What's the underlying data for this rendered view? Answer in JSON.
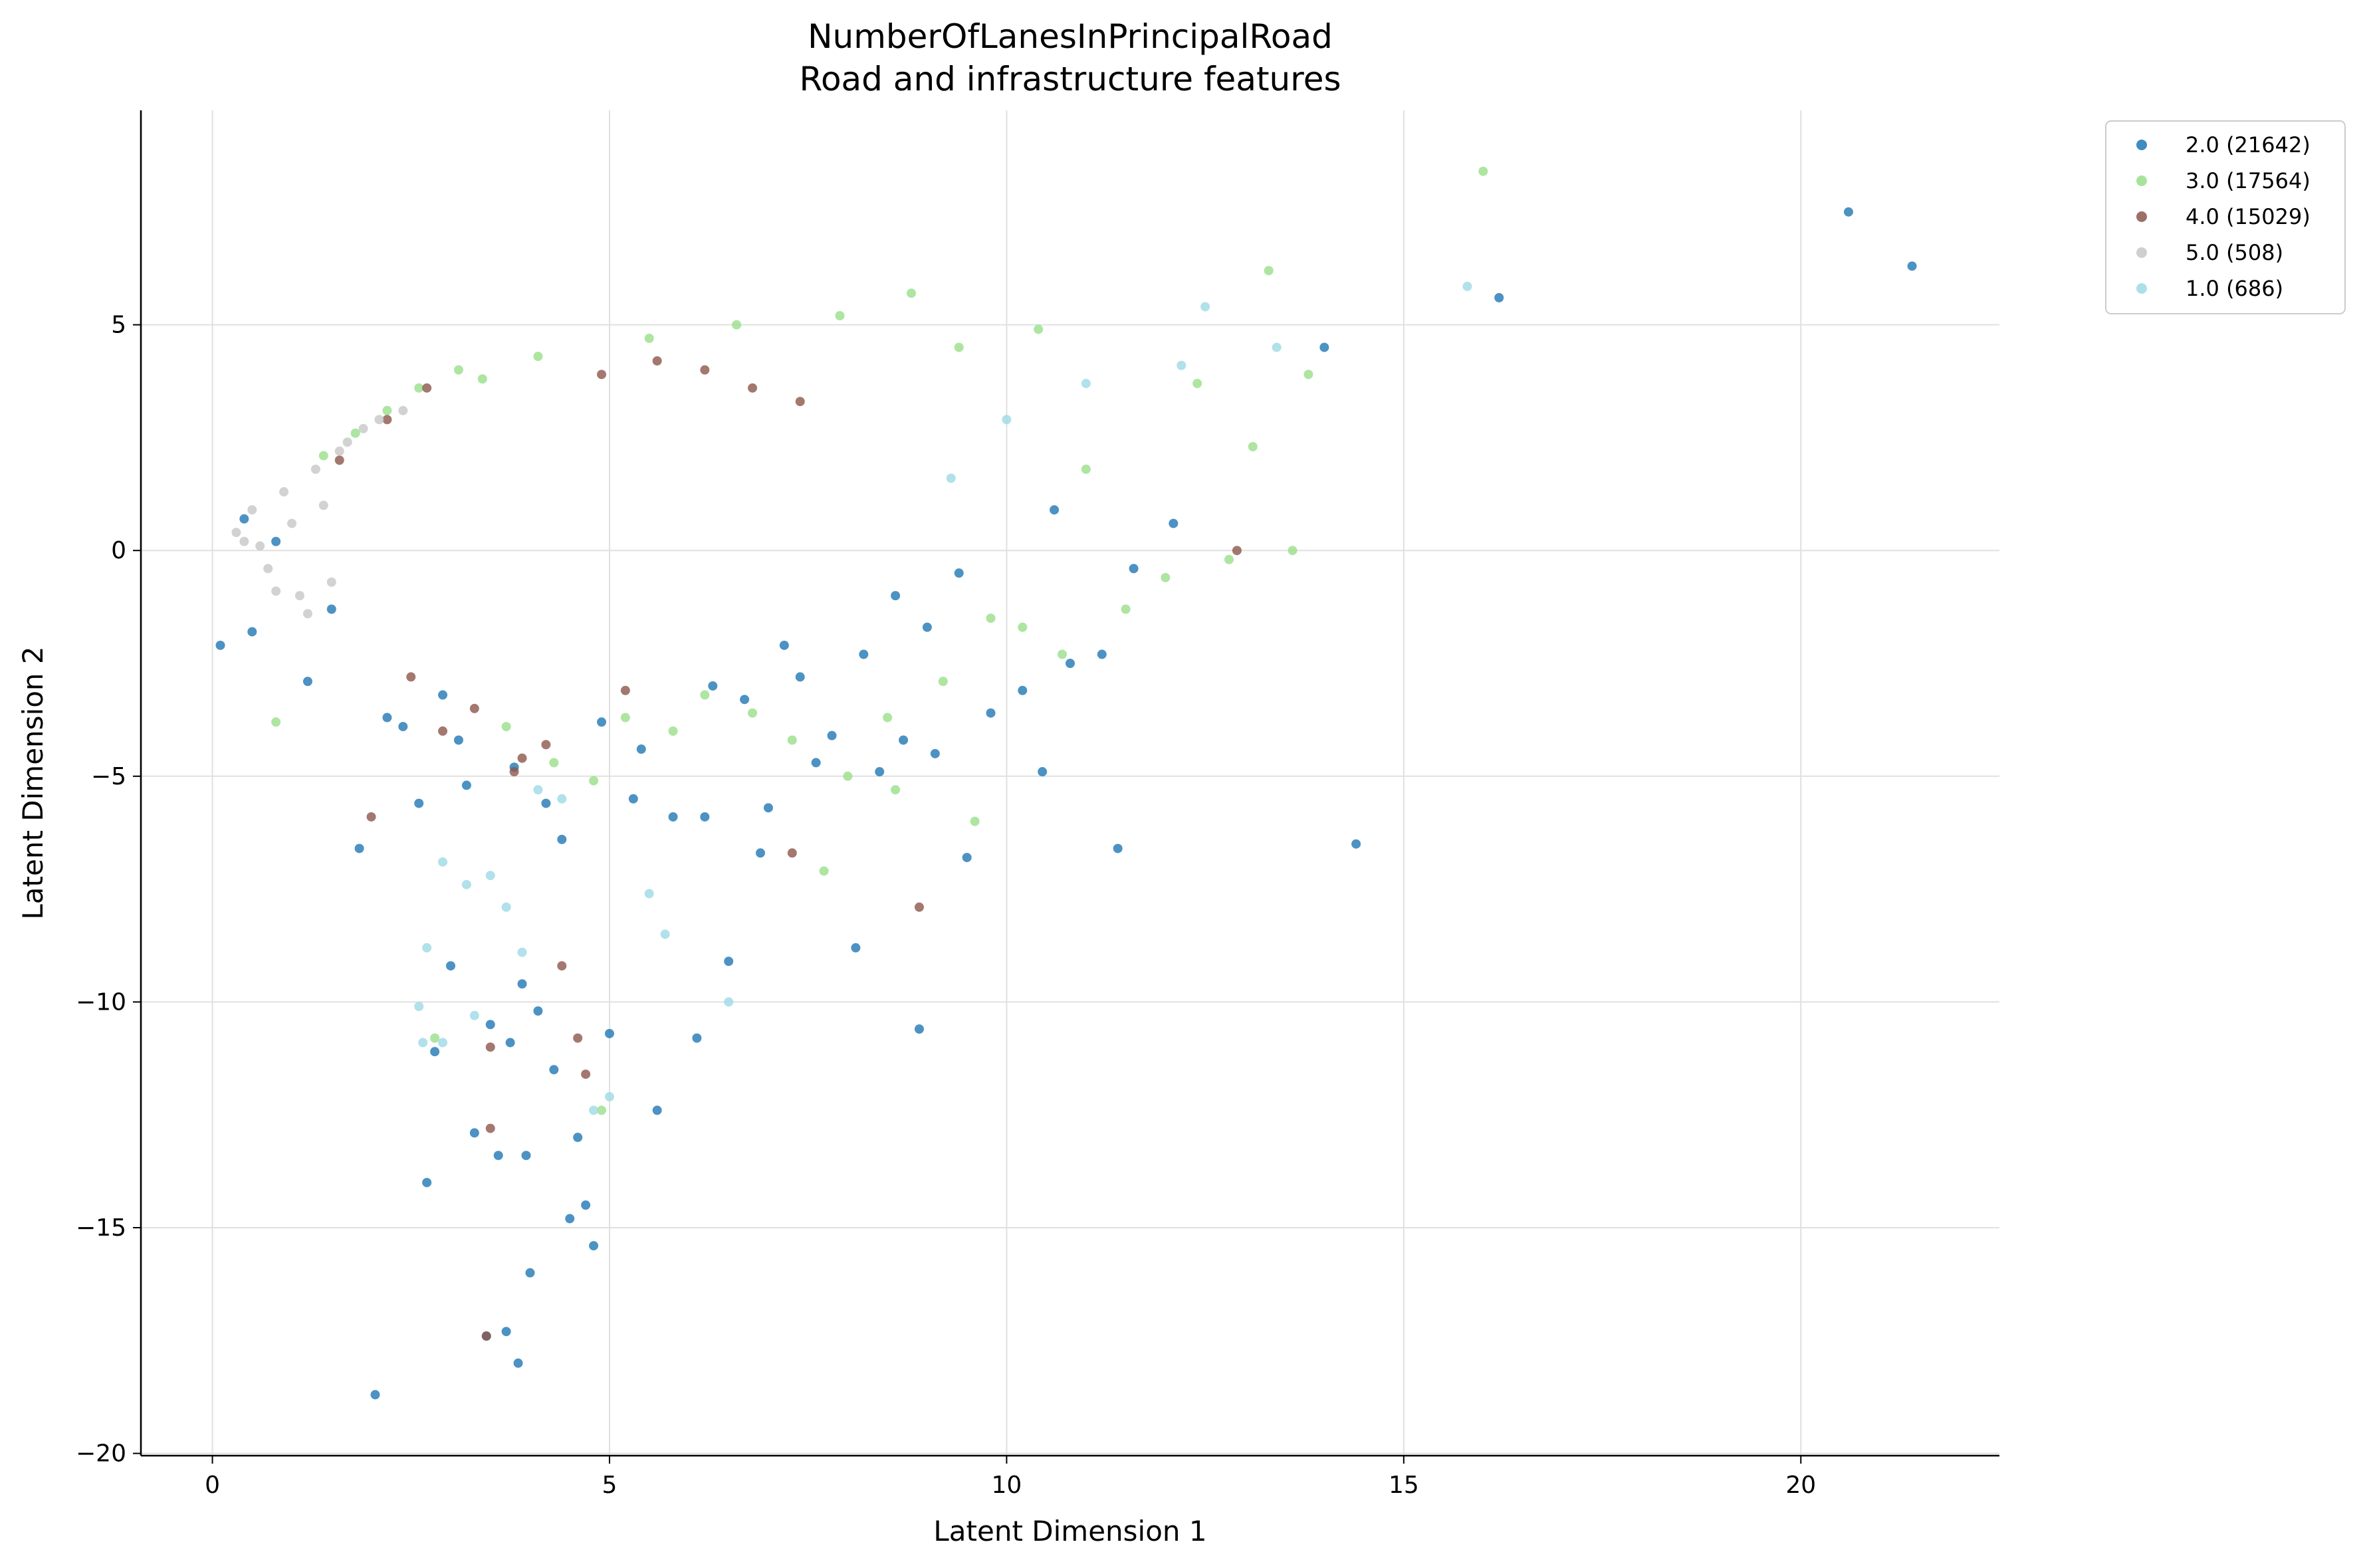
{
  "chart_data": {
    "type": "scatter",
    "title": "NumberOfLanesInPrincipalRoad",
    "subtitle": "Road and infrastructure features",
    "xlabel": "Latent Dimension 1",
    "ylabel": "Latent Dimension 2",
    "xlim": [
      -0.9,
      22.5
    ],
    "ylim": [
      -20.05,
      9.75
    ],
    "xticks": [
      0,
      5,
      10,
      15,
      20
    ],
    "xtick_labels": [
      "0",
      "5",
      "10",
      "15",
      "20"
    ],
    "yticks": [
      5,
      0,
      -5,
      -10,
      -15,
      -20
    ],
    "ytick_labels": [
      "5",
      "0",
      "−5",
      "−10",
      "−15",
      "−20"
    ],
    "grid": true,
    "legend_position": "outside top-right",
    "series": [
      {
        "name": "2.0 (21642)",
        "color": "#1f77b4",
        "x": [
          2.05,
          3.45,
          3.7,
          3.85,
          4.0,
          3.95,
          4.5,
          4.7,
          4.8,
          2.7,
          3.3,
          3.6,
          3.75,
          4.3,
          4.6,
          2.8,
          3.0,
          3.5,
          3.9,
          4.1,
          5.0,
          6.1,
          5.6,
          6.5,
          8.1,
          8.9,
          1.85,
          2.6,
          9.5,
          10.45,
          11.4,
          14.4,
          20.6,
          21.4,
          16.2,
          14.0,
          12.1,
          11.2,
          0.1,
          0.5,
          1.2,
          2.2,
          3.8,
          5.3,
          6.2,
          7.0,
          7.6,
          8.4,
          9.1,
          9.8,
          10.2,
          10.8,
          3.2,
          4.4,
          5.8,
          6.9,
          7.8,
          8.7,
          2.4,
          3.1,
          4.2,
          5.4,
          6.7,
          7.4,
          8.2,
          9.0,
          0.4,
          0.8,
          1.5,
          2.9,
          4.9,
          6.3,
          7.2,
          8.6,
          9.4,
          10.6,
          11.6
        ],
        "y": [
          -18.7,
          -17.4,
          -17.3,
          -18.0,
          -16.0,
          -13.4,
          -14.8,
          -14.5,
          -15.4,
          -14.0,
          -12.9,
          -13.4,
          -10.9,
          -11.5,
          -13.0,
          -11.1,
          -9.2,
          -10.5,
          -9.6,
          -10.2,
          -10.7,
          -10.8,
          -12.4,
          -9.1,
          -8.8,
          -10.6,
          -6.6,
          -5.6,
          -6.8,
          -4.9,
          -6.6,
          -6.5,
          7.5,
          6.3,
          5.6,
          4.5,
          0.6,
          -2.3,
          -2.1,
          -1.8,
          -2.9,
          -3.7,
          -4.8,
          -5.5,
          -5.9,
          -5.7,
          -4.7,
          -4.9,
          -4.5,
          -3.6,
          -3.1,
          -2.5,
          -5.2,
          -6.4,
          -5.9,
          -6.7,
          -4.1,
          -4.2,
          -3.9,
          -4.2,
          -5.6,
          -4.4,
          -3.3,
          -2.8,
          -2.3,
          -1.7,
          0.7,
          0.2,
          -1.3,
          -3.2,
          -3.8,
          -3.0,
          -2.1,
          -1.0,
          -0.5,
          0.9,
          -0.4
        ]
      },
      {
        "name": "3.0 (17564)",
        "color": "#98df8a",
        "x": [
          16.0,
          13.3,
          13.6,
          12.8,
          12.0,
          11.5,
          10.7,
          10.2,
          9.8,
          9.2,
          8.5,
          8.0,
          7.3,
          6.8,
          6.2,
          5.8,
          5.2,
          4.8,
          4.3,
          3.7,
          3.1,
          2.6,
          2.2,
          1.8,
          1.4,
          0.8,
          2.8,
          4.9,
          7.7,
          8.6,
          9.6,
          11.0,
          12.4,
          13.1,
          13.8,
          10.4,
          9.4,
          8.8,
          7.9,
          6.6,
          5.5,
          4.1,
          3.4
        ],
        "y": [
          8.4,
          6.2,
          0.0,
          -0.2,
          -0.6,
          -1.3,
          -2.3,
          -1.7,
          -1.5,
          -2.9,
          -3.7,
          -5.0,
          -4.2,
          -3.6,
          -3.2,
          -4.0,
          -3.7,
          -5.1,
          -4.7,
          -3.9,
          4.0,
          3.6,
          3.1,
          2.6,
          2.1,
          -3.8,
          -10.8,
          -12.4,
          -7.1,
          -5.3,
          -6.0,
          1.8,
          3.7,
          2.3,
          3.9,
          4.9,
          4.5,
          5.7,
          5.2,
          5.0,
          4.7,
          4.3,
          3.8
        ]
      },
      {
        "name": "4.0 (15029)",
        "color": "#8c564b",
        "x": [
          3.45,
          3.5,
          4.7,
          4.6,
          4.4,
          3.5,
          8.9,
          7.3,
          12.9,
          2.0,
          3.9,
          2.9,
          3.3,
          2.5,
          1.6,
          2.2,
          4.9,
          5.6,
          6.2,
          6.8,
          7.4,
          3.8,
          4.2,
          5.2,
          2.7
        ],
        "y": [
          -17.4,
          -12.8,
          -11.6,
          -10.8,
          -9.2,
          -11.0,
          -7.9,
          -6.7,
          0.0,
          -5.9,
          -4.6,
          -4.0,
          -3.5,
          -2.8,
          2.0,
          2.9,
          3.9,
          4.2,
          4.0,
          3.6,
          3.3,
          -4.9,
          -4.3,
          -3.1,
          3.6
        ]
      },
      {
        "name": "5.0 (508)",
        "color": "#c7c7c7",
        "x": [
          0.3,
          0.5,
          0.7,
          0.9,
          1.1,
          1.3,
          1.5,
          1.7,
          0.6,
          0.8,
          1.0,
          1.2,
          1.4,
          0.4,
          1.6,
          1.9,
          2.1,
          2.4
        ],
        "y": [
          0.4,
          0.9,
          -0.4,
          1.3,
          -1.0,
          1.8,
          -0.7,
          2.4,
          0.1,
          -0.9,
          0.6,
          -1.4,
          1.0,
          0.2,
          2.2,
          2.7,
          2.9,
          3.1
        ]
      },
      {
        "name": "1.0 (686)",
        "color": "#9edae5",
        "x": [
          15.8,
          12.5,
          13.4,
          12.2,
          2.6,
          2.9,
          3.3,
          3.7,
          4.8,
          5.0,
          5.7,
          6.5,
          2.65,
          3.2,
          2.7,
          2.9,
          3.5,
          3.9,
          5.5,
          4.1,
          4.4,
          11.0,
          10.0,
          9.3
        ],
        "y": [
          5.85,
          5.4,
          4.5,
          4.1,
          -10.1,
          -10.9,
          -10.3,
          -7.9,
          -12.4,
          -12.1,
          -8.5,
          -10.0,
          -10.9,
          -7.4,
          -8.8,
          -6.9,
          -7.2,
          -8.9,
          -7.6,
          -5.3,
          -5.5,
          3.7,
          2.9,
          1.6
        ]
      }
    ]
  }
}
